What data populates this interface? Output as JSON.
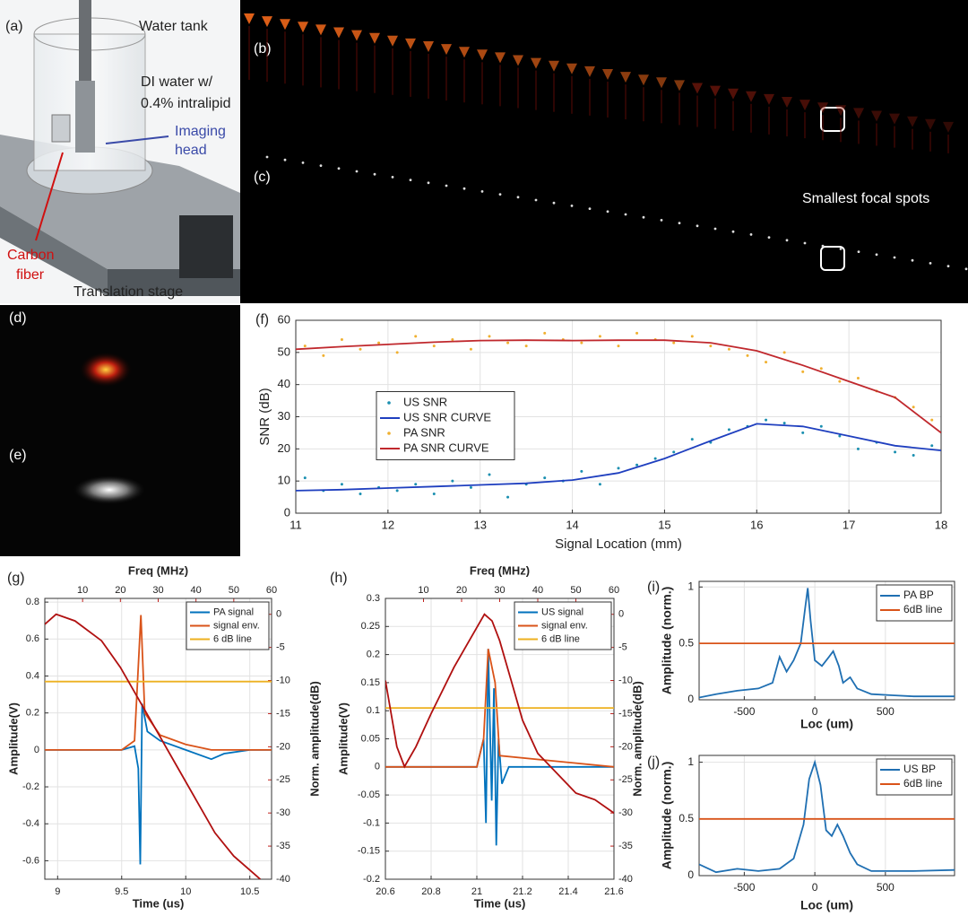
{
  "illustration": {
    "panel_label": "(a)",
    "tank": "Water tank",
    "water_line1": "DI water w/",
    "water_line2": "0.4% intralipid",
    "head_line1": "Imaging",
    "head_line2": "head",
    "fiber_line1": "Carbon",
    "fiber_line2": "fiber",
    "stage": "Translation stage"
  },
  "images": {
    "b_label": "(b)",
    "c_label": "(c)",
    "focal_note": "Smallest focal spots",
    "d_label": "(d)",
    "e_label": "(e)"
  },
  "chart_data": [
    {
      "type": "line",
      "panel_label": "(f)",
      "xlabel": "Signal Location (mm)",
      "ylabel": "SNR (dB)",
      "xlim": [
        11,
        18
      ],
      "ylim": [
        0,
        60
      ],
      "xticks": [
        11,
        12,
        13,
        14,
        15,
        16,
        17,
        18
      ],
      "yticks": [
        0,
        10,
        20,
        30,
        40,
        50,
        60
      ],
      "grid": true,
      "legend": "center left",
      "series": [
        {
          "name": "US SNR",
          "type": "scatter",
          "color": "#1a8fb0",
          "x": [
            11.1,
            11.3,
            11.5,
            11.7,
            11.9,
            12.1,
            12.3,
            12.5,
            12.7,
            12.9,
            13.1,
            13.3,
            13.5,
            13.7,
            13.9,
            14.1,
            14.3,
            14.5,
            14.7,
            14.9,
            15.1,
            15.3,
            15.5,
            15.7,
            15.9,
            16.1,
            16.3,
            16.5,
            16.7,
            16.9,
            17.1,
            17.3,
            17.5,
            17.7,
            17.9
          ],
          "values": [
            11,
            7,
            9,
            6,
            8,
            7,
            9,
            6,
            10,
            8,
            12,
            5,
            9,
            11,
            10,
            13,
            9,
            14,
            15,
            17,
            19,
            23,
            22,
            26,
            27,
            29,
            28,
            25,
            27,
            24,
            20,
            22,
            19,
            18,
            21
          ]
        },
        {
          "name": "US SNR CURVE",
          "type": "line",
          "color": "#1f3fbf",
          "x": [
            11,
            11.5,
            12,
            12.5,
            13,
            13.5,
            14,
            14.5,
            15,
            15.5,
            16,
            16.5,
            17,
            17.5,
            18
          ],
          "values": [
            7,
            7.3,
            7.8,
            8.3,
            8.8,
            9.3,
            10.3,
            12.5,
            17,
            22.5,
            27.8,
            27,
            24,
            21,
            19.5
          ]
        },
        {
          "name": "PA SNR",
          "type": "scatter",
          "color": "#f0b030",
          "x": [
            11.1,
            11.3,
            11.5,
            11.7,
            11.9,
            12.1,
            12.3,
            12.5,
            12.7,
            12.9,
            13.1,
            13.3,
            13.5,
            13.7,
            13.9,
            14.1,
            14.3,
            14.5,
            14.7,
            14.9,
            15.1,
            15.3,
            15.5,
            15.7,
            15.9,
            16.1,
            16.3,
            16.5,
            16.7,
            16.9,
            17.1,
            17.3,
            17.5,
            17.7,
            17.9
          ],
          "values": [
            52,
            49,
            54,
            51,
            53,
            50,
            55,
            52,
            54,
            51,
            55,
            53,
            52,
            56,
            54,
            53,
            55,
            52,
            56,
            54,
            53,
            55,
            52,
            51,
            49,
            47,
            50,
            44,
            45,
            41,
            42,
            38,
            36,
            33,
            29
          ]
        },
        {
          "name": "PA SNR CURVE",
          "type": "line",
          "color": "#c0282d",
          "x": [
            11,
            11.5,
            12,
            12.5,
            13,
            13.5,
            14,
            14.5,
            15,
            15.5,
            16,
            16.5,
            17,
            17.5,
            18
          ],
          "values": [
            51,
            51.8,
            52.5,
            53.2,
            53.7,
            53.8,
            53.7,
            53.8,
            53.8,
            53,
            50.5,
            46,
            41,
            36,
            25
          ]
        }
      ]
    },
    {
      "type": "line",
      "panel_label": "(g)",
      "xlabel": "Time (us)",
      "ylabel": "Amplitude(V)",
      "x2label": "Freq (MHz)",
      "y2label": "Norm. amplitude(dB)",
      "axis2_color": "#c0201c",
      "xlim": [
        8.9,
        10.67
      ],
      "ylim": [
        -0.7,
        0.82
      ],
      "x2lim": [
        0,
        60
      ],
      "y2lim": [
        -40,
        2.4
      ],
      "xticks": [
        9,
        9.5,
        10,
        10.5
      ],
      "yticks": [
        -0.6,
        -0.4,
        -0.2,
        0,
        0.2,
        0.4,
        0.6,
        0.8
      ],
      "x2ticks": [
        10,
        20,
        30,
        40,
        50,
        60
      ],
      "y2ticks": [
        0,
        -5,
        -10,
        -15,
        -20,
        -25,
        -30,
        -35,
        -40
      ],
      "grid": true,
      "legend": "upper right",
      "series": [
        {
          "name": "PA signal",
          "type": "line",
          "color": "#0072bd",
          "x": [
            8.9,
            9.5,
            9.6,
            9.63,
            9.645,
            9.66,
            9.7,
            9.8,
            10,
            10.2,
            10.3,
            10.5,
            10.67
          ],
          "values": [
            0,
            0,
            0.02,
            -0.1,
            -0.62,
            0.25,
            0.1,
            0.05,
            0,
            -0.05,
            -0.02,
            0,
            0
          ]
        },
        {
          "name": "signal env.",
          "type": "line",
          "color": "#d95319",
          "x": [
            8.9,
            9.5,
            9.6,
            9.65,
            9.68,
            9.8,
            10,
            10.2,
            10.67
          ],
          "values": [
            0,
            0,
            0.05,
            0.73,
            0.2,
            0.08,
            0.03,
            0,
            0
          ]
        },
        {
          "name": "6 dB line",
          "type": "line",
          "color": "#edb120",
          "x": [
            8.9,
            10.67
          ],
          "values": [
            0.37,
            0.37
          ]
        },
        {
          "type": "line",
          "color": "#b01010",
          "axis": "y2",
          "xaxis": "x2",
          "x": [
            0,
            3,
            8,
            15,
            20,
            25,
            30,
            35,
            40,
            45,
            50,
            55,
            57
          ],
          "values": [
            -1.5,
            0,
            -1,
            -4,
            -8,
            -13,
            -18,
            -23,
            -28,
            -33,
            -36.5,
            -39,
            -40
          ]
        }
      ]
    },
    {
      "type": "line",
      "panel_label": "(h)",
      "xlabel": "Time (us)",
      "ylabel": "Amplitude(V)",
      "x2label": "Freq (MHz)",
      "y2label": "Norm. amplitude(dB)",
      "axis2_color": "#c0201c",
      "xlim": [
        20.6,
        21.6
      ],
      "ylim": [
        -0.2,
        0.3
      ],
      "x2lim": [
        0,
        60
      ],
      "y2lim": [
        -40,
        2.4
      ],
      "xticks": [
        20.6,
        20.8,
        21,
        21.2,
        21.4,
        21.6
      ],
      "yticks": [
        -0.2,
        -0.15,
        -0.1,
        -0.05,
        0,
        0.05,
        0.1,
        0.15,
        0.2,
        0.25,
        0.3
      ],
      "x2ticks": [
        10,
        20,
        30,
        40,
        50,
        60
      ],
      "y2ticks": [
        0,
        -5,
        -10,
        -15,
        -20,
        -25,
        -30,
        -35,
        -40
      ],
      "grid": true,
      "legend": "upper right",
      "series": [
        {
          "name": "US signal",
          "type": "line",
          "color": "#0072bd",
          "x": [
            20.6,
            21,
            21.03,
            21.04,
            21.05,
            21.065,
            21.075,
            21.085,
            21.095,
            21.11,
            21.14,
            21.6
          ],
          "values": [
            0,
            0,
            0.05,
            -0.1,
            0.21,
            -0.06,
            0.14,
            -0.14,
            0.05,
            -0.03,
            0,
            0
          ]
        },
        {
          "name": "signal env.",
          "type": "line",
          "color": "#d95319",
          "x": [
            20.6,
            21,
            21.03,
            21.05,
            21.08,
            21.1,
            21.6
          ],
          "values": [
            0,
            0,
            0.05,
            0.21,
            0.15,
            0.02,
            0
          ]
        },
        {
          "name": "6 dB line",
          "type": "line",
          "color": "#edb120",
          "x": [
            20.6,
            21.6
          ],
          "values": [
            0.105,
            0.105
          ]
        },
        {
          "type": "line",
          "color": "#b01010",
          "axis": "y2",
          "xaxis": "x2",
          "x": [
            0,
            3,
            5,
            8,
            12,
            18,
            22,
            26,
            28,
            30,
            33,
            36,
            40,
            45,
            50,
            55,
            60
          ],
          "values": [
            -10,
            -20,
            -23,
            -20,
            -15,
            -8,
            -4,
            0,
            -1,
            -4,
            -10,
            -16,
            -21,
            -24,
            -27,
            -28,
            -30
          ]
        }
      ]
    },
    {
      "type": "line",
      "panel_label": "(i)",
      "xlabel": "Loc (um)",
      "ylabel": "Amplitude (norm.)",
      "xlim": [
        -820,
        990
      ],
      "ylim": [
        0,
        1.05
      ],
      "xticks": [
        -500,
        0,
        500
      ],
      "yticks": [
        0,
        0.5,
        1
      ],
      "grid": true,
      "legend": "upper right",
      "series": [
        {
          "name": "PA BP",
          "type": "line",
          "color": "#1f6fb2",
          "x": [
            -820,
            -700,
            -550,
            -400,
            -300,
            -250,
            -200,
            -150,
            -100,
            -70,
            -50,
            -30,
            0,
            50,
            100,
            130,
            170,
            200,
            250,
            300,
            400,
            550,
            700,
            990
          ],
          "values": [
            0.02,
            0.05,
            0.08,
            0.1,
            0.15,
            0.38,
            0.25,
            0.35,
            0.5,
            0.8,
            0.99,
            0.7,
            0.35,
            0.3,
            0.38,
            0.43,
            0.3,
            0.15,
            0.2,
            0.1,
            0.05,
            0.04,
            0.03,
            0.03
          ]
        },
        {
          "name": "6dB line",
          "type": "line",
          "color": "#d95319",
          "x": [
            -820,
            990
          ],
          "values": [
            0.5,
            0.5
          ]
        }
      ]
    },
    {
      "type": "line",
      "panel_label": "(j)",
      "xlabel": "Loc (um)",
      "ylabel": "Amplitude (norm.)",
      "xlim": [
        -820,
        990
      ],
      "ylim": [
        0,
        1.06
      ],
      "xticks": [
        -500,
        0,
        500
      ],
      "yticks": [
        0,
        0.5,
        1
      ],
      "grid": true,
      "legend": "upper right",
      "series": [
        {
          "name": "US BP",
          "type": "line",
          "color": "#1f6fb2",
          "x": [
            -820,
            -700,
            -550,
            -400,
            -250,
            -150,
            -80,
            -40,
            0,
            40,
            80,
            120,
            160,
            200,
            250,
            300,
            400,
            550,
            700,
            990
          ],
          "values": [
            0.1,
            0.03,
            0.06,
            0.04,
            0.06,
            0.15,
            0.45,
            0.85,
            1,
            0.8,
            0.4,
            0.35,
            0.45,
            0.35,
            0.2,
            0.1,
            0.04,
            0.04,
            0.04,
            0.05
          ]
        },
        {
          "name": "6dB line",
          "type": "line",
          "color": "#d95319",
          "x": [
            -820,
            990
          ],
          "values": [
            0.5,
            0.5
          ]
        }
      ]
    }
  ]
}
